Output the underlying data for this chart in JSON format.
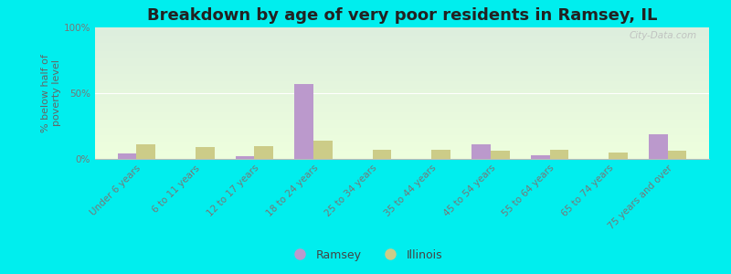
{
  "title": "Breakdown by age of very poor residents in Ramsey, IL",
  "ylabel": "% below half of\npoverty level",
  "categories": [
    "Under 6 years",
    "6 to 11 years",
    "12 to 17 years",
    "18 to 24 years",
    "25 to 34 years",
    "35 to 44 years",
    "45 to 54 years",
    "55 to 64 years",
    "65 to 74 years",
    "75 years and over"
  ],
  "ramsey_values": [
    4,
    0,
    2,
    57,
    0,
    0,
    11,
    3,
    0,
    19
  ],
  "illinois_values": [
    11,
    9,
    10,
    14,
    7,
    7,
    6,
    7,
    5,
    6
  ],
  "ramsey_color": "#bb99cc",
  "illinois_color": "#cccc88",
  "background_color": "#00eeee",
  "plot_bg_top": "#ddeedd",
  "plot_bg_bottom": "#eeffdd",
  "ylim": [
    0,
    100
  ],
  "yticks": [
    0,
    50,
    100
  ],
  "ytick_labels": [
    "0%",
    "50%",
    "100%"
  ],
  "bar_width": 0.32,
  "title_fontsize": 13,
  "axis_label_fontsize": 8,
  "tick_fontsize": 7.5,
  "watermark": "City-Data.com"
}
